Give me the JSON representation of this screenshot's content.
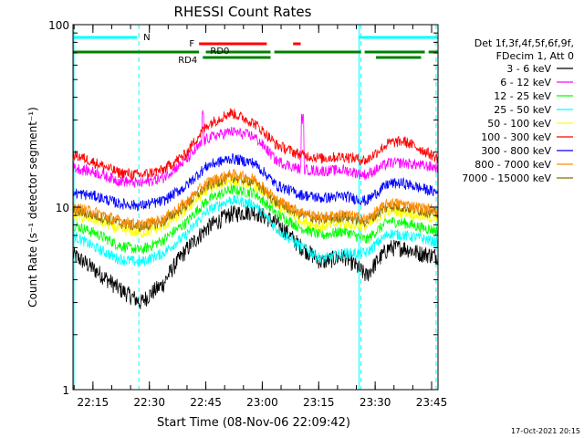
{
  "chart_data": {
    "type": "line",
    "title": "RHESSI Count Rates",
    "xlabel": "Start Time (08-Nov-06 22:09:42)",
    "ylabel": "Count Rate (s⁻¹ detector segment⁻¹)",
    "yscale": "log",
    "ylim": [
      1,
      100
    ],
    "y_ticks": [
      "1",
      "10",
      "100"
    ],
    "x_ticks": [
      "22:15",
      "22:30",
      "22:45",
      "23:00",
      "23:15",
      "23:30",
      "23:45"
    ],
    "xlim_minutes": [
      0,
      97
    ],
    "legend_header": [
      "Det 1f,3f,4f,5f,6f,9f,",
      "FDecim 1, Att 0"
    ],
    "legend_position": "right",
    "footer": "17-Oct-2021 20:15",
    "series": [
      {
        "name": "3 - 6 keV",
        "color": "#000000",
        "values": [
          5.5,
          4.5,
          3.6,
          3.0,
          3.8,
          5.8,
          7.8,
          9.2,
          9.5,
          8.2,
          6.2,
          5.0,
          5.4,
          4.2,
          6.0,
          6.0,
          5.6,
          5.4
        ]
      },
      {
        "name": "6 - 12 keV",
        "color": "#ff00ff",
        "values": [
          16.5,
          15.5,
          14.0,
          13.5,
          14.5,
          18.0,
          24.0,
          26.0,
          24.5,
          18.0,
          16.2,
          15.8,
          16.0,
          15.0,
          17.5,
          17.5,
          17.0,
          16.5
        ]
      },
      {
        "name": "12 - 25 keV",
        "color": "#00ff00",
        "values": [
          8.0,
          7.2,
          6.2,
          5.8,
          6.6,
          8.2,
          11.0,
          12.5,
          12.0,
          9.2,
          7.8,
          7.0,
          7.4,
          6.6,
          8.4,
          8.2,
          7.8,
          7.4
        ]
      },
      {
        "name": "25 - 50 keV",
        "color": "#00ffff",
        "values": [
          7.0,
          6.0,
          5.2,
          5.0,
          5.6,
          7.0,
          9.6,
          11.0,
          10.4,
          7.6,
          6.2,
          5.2,
          5.6,
          5.6,
          7.2,
          7.0,
          6.8,
          6.4
        ]
      },
      {
        "name": "50 - 100 keV",
        "color": "#ffff00",
        "values": [
          9.0,
          8.5,
          7.6,
          7.2,
          7.8,
          9.6,
          12.6,
          14.0,
          13.4,
          10.2,
          8.6,
          7.8,
          8.2,
          7.8,
          9.6,
          9.4,
          9.0,
          8.6
        ]
      },
      {
        "name": "100 - 300 keV",
        "color": "#ff0000",
        "values": [
          19.5,
          17.5,
          15.5,
          15.0,
          16.0,
          19.5,
          28.5,
          33.0,
          29.0,
          22.0,
          19.5,
          18.5,
          19.0,
          18.0,
          22.5,
          23.0,
          21.0,
          18.5
        ]
      },
      {
        "name": "300 - 800 keV",
        "color": "#0000ff",
        "values": [
          12.0,
          11.5,
          10.5,
          10.2,
          10.8,
          13.0,
          17.0,
          18.5,
          17.5,
          13.2,
          11.8,
          11.2,
          11.5,
          10.8,
          13.5,
          13.5,
          12.8,
          12.0
        ]
      },
      {
        "name": "800 - 7000 keV",
        "color": "#ff8c00",
        "values": [
          10.0,
          9.4,
          8.5,
          8.0,
          8.6,
          10.6,
          13.8,
          15.2,
          14.4,
          11.0,
          9.5,
          8.8,
          9.2,
          8.6,
          10.6,
          10.4,
          10.0,
          9.6
        ]
      },
      {
        "name": "7000 - 15000 keV",
        "color": "#8b6f00",
        "values": [
          9.6,
          9.0,
          8.2,
          7.8,
          8.3,
          10.2,
          13.2,
          14.6,
          13.8,
          10.6,
          9.2,
          8.5,
          8.9,
          8.3,
          10.2,
          10.0,
          9.6,
          9.2
        ]
      }
    ],
    "x_minutes": [
      0,
      6,
      12,
      18,
      24,
      30,
      36,
      42,
      48,
      54,
      60,
      66,
      72,
      78,
      84,
      88,
      92,
      97
    ],
    "flags": [
      {
        "label": "N",
        "color": "#00ffff",
        "segments": [
          [
            0,
            17
          ],
          [
            76,
            97
          ]
        ]
      },
      {
        "label": "F",
        "color": "#ff0000",
        "segments": [
          [
            33.5,
            51.5
          ],
          [
            58.5,
            60.5
          ]
        ]
      },
      {
        "label": "RD0",
        "color": "#008000",
        "segments": [
          [
            0,
            33.5
          ],
          [
            35.3,
            52.5
          ],
          [
            53.5,
            76.5
          ],
          [
            77.5,
            93.5
          ],
          [
            94.5,
            97
          ]
        ]
      },
      {
        "label": "RD4",
        "color": "#008000",
        "segments": [
          [
            34.5,
            52.5
          ],
          [
            80.5,
            92.5
          ]
        ]
      }
    ],
    "vertical_markers_minutes": [
      17.5,
      76.5,
      96.5
    ],
    "grid": false
  }
}
